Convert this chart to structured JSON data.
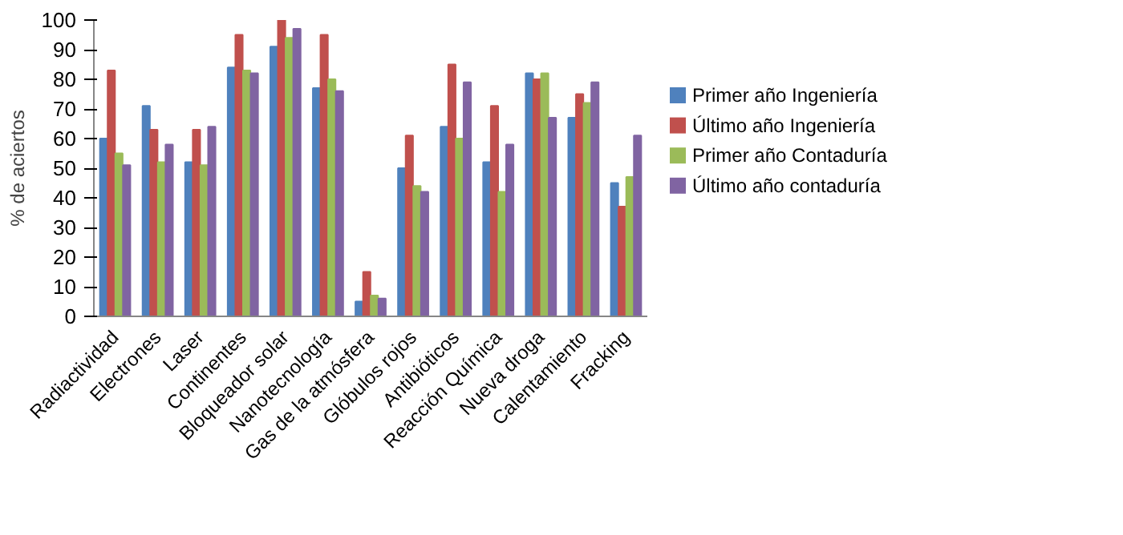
{
  "chart_data": {
    "type": "bar",
    "ylabel": "% de aciertos",
    "categories": [
      "Radiactividad",
      "Electrones",
      "Laser",
      "Continentes",
      "Bloqueador solar",
      "Nanotecnología",
      "Gas de la atmósfera",
      "Glóbulos rojos",
      "Antibióticos",
      "Reacción Química",
      "Nueva droga",
      "Calentamiento",
      "Fracking"
    ],
    "series": [
      {
        "name": "Primer año Ingeniería",
        "color": "#4f81bd",
        "values": [
          60,
          71,
          52,
          84,
          91,
          77,
          5,
          50,
          64,
          52,
          82,
          67,
          45
        ]
      },
      {
        "name": "Último año Ingeniería",
        "color": "#c0504d",
        "values": [
          83,
          63,
          63,
          95,
          100,
          95,
          15,
          61,
          85,
          71,
          80,
          75,
          37
        ]
      },
      {
        "name": "Primer año Contaduría",
        "color": "#9bbb59",
        "values": [
          55,
          52,
          51,
          83,
          94,
          80,
          7,
          44,
          60,
          42,
          82,
          72,
          47
        ]
      },
      {
        "name": "Último año contaduría",
        "color": "#8064a2",
        "values": [
          51,
          58,
          64,
          82,
          97,
          76,
          6,
          42,
          79,
          58,
          67,
          79,
          61
        ]
      }
    ],
    "ylim": [
      0,
      100
    ],
    "yticks": [
      0,
      10,
      20,
      30,
      40,
      50,
      60,
      70,
      80,
      90,
      100
    ],
    "grid": false,
    "legend": "right"
  }
}
